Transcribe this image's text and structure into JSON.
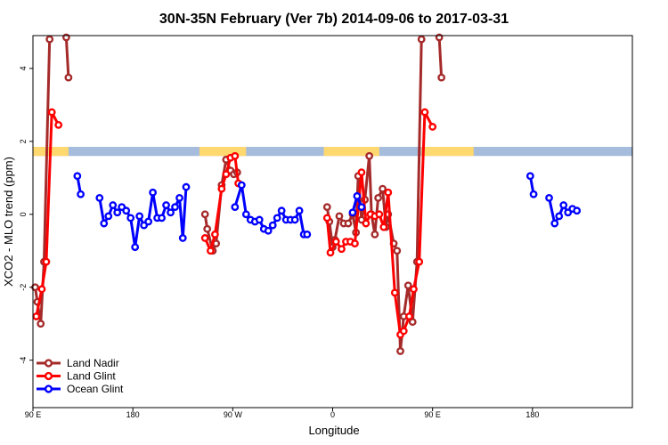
{
  "chart_data": {
    "type": "line",
    "title": "30N-35N February (Ver 7b)   2014-09-06 to 2017-03-31",
    "xlabel": "Longitude",
    "ylabel": "XCO2 - MLO trend (ppm)",
    "xlim": [
      0,
      540
    ],
    "ylim": [
      -5.3,
      4.9
    ],
    "x_ticks": [
      {
        "value": 0,
        "label": "90 E"
      },
      {
        "value": 90,
        "label": "180"
      },
      {
        "value": 180,
        "label": "90 W"
      },
      {
        "value": 270,
        "label": "0"
      },
      {
        "value": 360,
        "label": "90 E"
      },
      {
        "value": 450,
        "label": "180"
      }
    ],
    "y_ticks": [
      {
        "value": -4,
        "label": "-4"
      },
      {
        "value": -2,
        "label": "-2"
      },
      {
        "value": 0,
        "label": "0"
      },
      {
        "value": 2,
        "label": "2"
      },
      {
        "value": 4,
        "label": "4"
      }
    ],
    "legend_position": "bottom-left",
    "land_ocean_band": {
      "y_range": [
        1.6,
        1.85
      ],
      "land_color": "#FFD870",
      "ocean_color": "#A6BCDC",
      "land_segments": [
        [
          0,
          32
        ],
        [
          150,
          192
        ],
        [
          262,
          312
        ],
        [
          350,
          397
        ]
      ]
    },
    "series": [
      {
        "name": "Land Nadir",
        "color": "#A52A2A",
        "segments": [
          [
            [
              2,
              -2.0
            ],
            [
              4,
              -2.4
            ],
            [
              7,
              -3.0
            ],
            [
              10,
              -1.3
            ],
            [
              15,
              4.8
            ]
          ],
          [
            [
              30,
              4.85
            ],
            [
              32,
              3.75
            ]
          ],
          [
            [
              155,
              0.0
            ],
            [
              157,
              -0.4
            ],
            [
              162,
              -1.0
            ],
            [
              165,
              -0.8
            ],
            [
              170,
              0.8
            ],
            [
              174,
              1.5
            ],
            [
              178,
              1.2
            ],
            [
              181,
              1.1
            ],
            [
              184,
              1.15
            ]
          ],
          [
            [
              265,
              0.2
            ],
            [
              267,
              -0.2
            ],
            [
              270,
              -0.9
            ],
            [
              272,
              -0.7
            ],
            [
              276,
              -0.05
            ],
            [
              280,
              -0.25
            ],
            [
              284,
              -0.25
            ],
            [
              288,
              0.0
            ],
            [
              291,
              -0.5
            ],
            [
              293,
              1.05
            ],
            [
              296,
              -0.15
            ],
            [
              299,
              0.4
            ],
            [
              303,
              1.6
            ],
            [
              305,
              0.0
            ],
            [
              308,
              -0.55
            ],
            [
              311,
              0.45
            ],
            [
              315,
              0.7
            ],
            [
              318,
              -0.35
            ],
            [
              320,
              0.0
            ],
            [
              325,
              -0.8
            ],
            [
              328,
              -1.0
            ],
            [
              331,
              -3.75
            ],
            [
              334,
              -2.8
            ],
            [
              338,
              -1.95
            ],
            [
              342,
              -2.95
            ],
            [
              346,
              -1.3
            ],
            [
              350,
              4.8
            ]
          ],
          [
            [
              366,
              4.85
            ],
            [
              368,
              3.75
            ]
          ]
        ]
      },
      {
        "name": "Land Glint",
        "color": "#FF0000",
        "segments": [
          [
            [
              3,
              -2.8
            ],
            [
              8,
              -2.05
            ],
            [
              12,
              -1.3
            ],
            [
              17,
              2.8
            ],
            [
              23,
              2.45
            ]
          ],
          [
            [
              155,
              -0.65
            ],
            [
              160,
              -1.0
            ],
            [
              164,
              -0.55
            ],
            [
              170,
              0.7
            ],
            [
              174,
              1.1
            ],
            [
              178,
              1.55
            ],
            [
              182,
              1.6
            ],
            [
              185,
              0.85
            ]
          ],
          [
            [
              265,
              -0.1
            ],
            [
              268,
              -1.05
            ],
            [
              273,
              -0.75
            ],
            [
              278,
              -0.95
            ],
            [
              282,
              -0.75
            ],
            [
              286,
              -0.75
            ],
            [
              290,
              -0.8
            ],
            [
              296,
              1.15
            ],
            [
              300,
              -0.25
            ],
            [
              304,
              0.0
            ],
            [
              308,
              -0.05
            ],
            [
              312,
              0.0
            ],
            [
              316,
              -0.35
            ],
            [
              320,
              0.6
            ],
            [
              326,
              -2.15
            ],
            [
              331,
              -3.3
            ],
            [
              334,
              -3.2
            ],
            [
              339,
              -2.8
            ],
            [
              343,
              -2.05
            ],
            [
              348,
              -1.3
            ],
            [
              353,
              2.8
            ],
            [
              360,
              2.4
            ]
          ]
        ]
      },
      {
        "name": "Ocean Glint",
        "color": "#0000FF",
        "segments": [
          [
            [
              40,
              1.05
            ],
            [
              43,
              0.55
            ]
          ],
          [
            [
              60,
              0.45
            ],
            [
              64,
              -0.25
            ],
            [
              68,
              -0.05
            ],
            [
              72,
              0.25
            ],
            [
              76,
              0.05
            ],
            [
              80,
              0.2
            ],
            [
              84,
              0.1
            ],
            [
              88,
              -0.1
            ],
            [
              92,
              -0.9
            ],
            [
              96,
              -0.05
            ],
            [
              100,
              -0.3
            ],
            [
              104,
              -0.2
            ],
            [
              108,
              0.6
            ],
            [
              112,
              -0.1
            ],
            [
              116,
              -0.1
            ],
            [
              120,
              0.25
            ],
            [
              124,
              0.05
            ],
            [
              128,
              0.2
            ],
            [
              132,
              0.45
            ],
            [
              135,
              -0.65
            ],
            [
              138,
              0.75
            ]
          ],
          [
            [
              182,
              0.2
            ],
            [
              188,
              0.8
            ],
            [
              192,
              0.0
            ],
            [
              196,
              -0.15
            ],
            [
              200,
              -0.2
            ],
            [
              204,
              -0.15
            ],
            [
              208,
              -0.4
            ],
            [
              212,
              -0.45
            ],
            [
              216,
              -0.3
            ],
            [
              220,
              -0.1
            ],
            [
              224,
              0.1
            ],
            [
              228,
              -0.15
            ],
            [
              232,
              -0.15
            ],
            [
              236,
              -0.15
            ],
            [
              240,
              0.1
            ],
            [
              244,
              -0.55
            ],
            [
              247,
              -0.55
            ]
          ],
          [
            [
              288,
              0.05
            ],
            [
              292,
              0.5
            ],
            [
              296,
              0.2
            ]
          ],
          [
            [
              448,
              1.05
            ],
            [
              451,
              0.55
            ]
          ],
          [
            [
              465,
              0.45
            ],
            [
              470,
              -0.25
            ],
            [
              474,
              -0.05
            ],
            [
              478,
              0.25
            ],
            [
              482,
              0.05
            ],
            [
              486,
              0.15
            ],
            [
              490,
              0.1
            ]
          ]
        ]
      }
    ]
  }
}
